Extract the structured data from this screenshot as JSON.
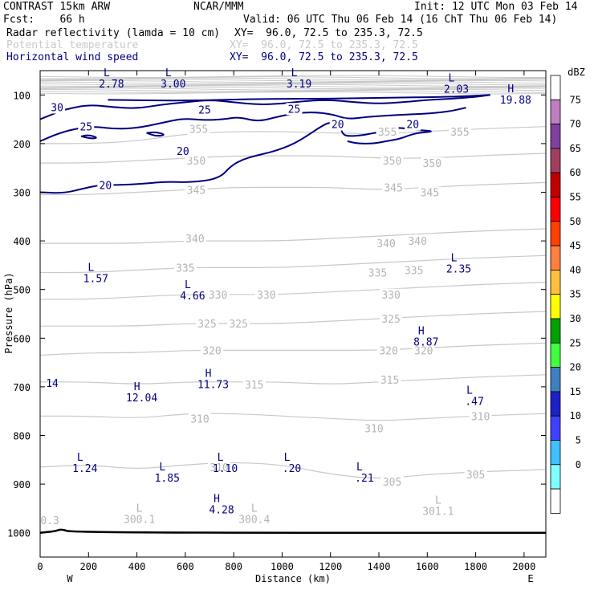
{
  "header": {
    "line1_left": "CONTRAST 15km ARW",
    "line1_mid": "NCAR/MMM",
    "line1_right": "Init: 12 UTC Mon 03 Feb 14",
    "line2_left": "Fcst:    66 h",
    "line2_right": "Valid: 06 UTC Thu 06 Feb 14 (16 ChT Thu 06 Feb 14)",
    "fields": [
      {
        "name": "Radar reflectivity (lamda = 10 cm)",
        "xy": "XY=  96.0, 72.5 to 235.3, 72.5",
        "color": "#000000"
      },
      {
        "name": "Potential temperature",
        "xy": "XY=  96.0, 72.5 to 235.3, 72.5",
        "color": "#c8c8c8"
      },
      {
        "name": "Horizontal wind speed",
        "xy": "XY=  96.0, 72.5 to 235.3, 72.5",
        "color": "#000080"
      }
    ]
  },
  "chart_data": {
    "type": "line",
    "title": "",
    "xlabel": "Distance (km)",
    "ylabel": "Pressure (hPa)",
    "xlim": [
      0,
      2090
    ],
    "ylim": [
      1050,
      50
    ],
    "x_ticks": [
      0,
      200,
      400,
      600,
      800,
      1000,
      1200,
      1400,
      1600,
      1800,
      2000
    ],
    "y_ticks": [
      100,
      200,
      300,
      400,
      500,
      600,
      700,
      800,
      900,
      1000
    ],
    "x_end_labels": {
      "left": "W",
      "right": "E"
    },
    "colorbar": {
      "unit": "dBZ",
      "levels": [
        0,
        5,
        10,
        15,
        20,
        25,
        30,
        35,
        40,
        45,
        50,
        55,
        60,
        65,
        70,
        75
      ],
      "colors": [
        "#ffffff",
        "#80ffff",
        "#40c0ff",
        "#4040ff",
        "#2020c8",
        "#4080c0",
        "#40ff40",
        "#00a000",
        "#ffff00",
        "#ffc040",
        "#ff8040",
        "#ff4000",
        "#ff0000",
        "#c00000",
        "#a04060",
        "#8040a0",
        "#c080c0",
        "#ffffff"
      ]
    },
    "theta_series": [
      {
        "label": "305",
        "values": [
          [
            0,
            865
          ],
          [
            200,
            860
          ],
          [
            400,
            870
          ],
          [
            600,
            860
          ],
          [
            800,
            855
          ],
          [
            1000,
            860
          ],
          [
            1200,
            880
          ],
          [
            1400,
            890
          ],
          [
            1600,
            880
          ],
          [
            1800,
            875
          ],
          [
            2090,
            870
          ]
        ]
      },
      {
        "label": "310",
        "values": [
          [
            0,
            760
          ],
          [
            200,
            760
          ],
          [
            400,
            765
          ],
          [
            600,
            755
          ],
          [
            800,
            755
          ],
          [
            1000,
            760
          ],
          [
            1200,
            765
          ],
          [
            1400,
            770
          ],
          [
            1600,
            765
          ],
          [
            1800,
            760
          ],
          [
            2090,
            755
          ]
        ]
      },
      {
        "label": "315",
        "values": [
          [
            0,
            690
          ],
          [
            200,
            690
          ],
          [
            400,
            695
          ],
          [
            600,
            690
          ],
          [
            800,
            690
          ],
          [
            1000,
            690
          ],
          [
            1200,
            695
          ],
          [
            1400,
            690
          ],
          [
            1600,
            685
          ],
          [
            1800,
            680
          ],
          [
            2090,
            675
          ]
        ]
      },
      {
        "label": "320",
        "values": [
          [
            0,
            635
          ],
          [
            200,
            630
          ],
          [
            400,
            630
          ],
          [
            600,
            625
          ],
          [
            800,
            625
          ],
          [
            1000,
            625
          ],
          [
            1200,
            625
          ],
          [
            1400,
            625
          ],
          [
            1600,
            620
          ],
          [
            1800,
            615
          ],
          [
            2090,
            610
          ]
        ]
      },
      {
        "label": "325",
        "values": [
          [
            0,
            575
          ],
          [
            200,
            575
          ],
          [
            400,
            575
          ],
          [
            600,
            570
          ],
          [
            800,
            570
          ],
          [
            1000,
            570
          ],
          [
            1200,
            565
          ],
          [
            1400,
            560
          ],
          [
            1600,
            555
          ],
          [
            1800,
            550
          ],
          [
            2090,
            545
          ]
        ]
      },
      {
        "label": "330",
        "values": [
          [
            0,
            520
          ],
          [
            200,
            520
          ],
          [
            400,
            515
          ],
          [
            600,
            510
          ],
          [
            800,
            510
          ],
          [
            1000,
            510
          ],
          [
            1200,
            505
          ],
          [
            1400,
            500
          ],
          [
            1600,
            495
          ],
          [
            1800,
            490
          ],
          [
            2090,
            485
          ]
        ]
      },
      {
        "label": "335",
        "values": [
          [
            0,
            465
          ],
          [
            200,
            465
          ],
          [
            400,
            460
          ],
          [
            600,
            455
          ],
          [
            800,
            455
          ],
          [
            1000,
            455
          ],
          [
            1200,
            450
          ],
          [
            1400,
            445
          ],
          [
            1600,
            440
          ],
          [
            1800,
            435
          ],
          [
            2090,
            430
          ]
        ]
      },
      {
        "label": "340",
        "values": [
          [
            0,
            405
          ],
          [
            200,
            405
          ],
          [
            400,
            405
          ],
          [
            600,
            400
          ],
          [
            800,
            400
          ],
          [
            1000,
            400
          ],
          [
            1200,
            395
          ],
          [
            1400,
            390
          ],
          [
            1600,
            385
          ],
          [
            1800,
            380
          ],
          [
            2090,
            375
          ]
        ]
      },
      {
        "label": "345",
        "values": [
          [
            0,
            305
          ],
          [
            200,
            305
          ],
          [
            400,
            300
          ],
          [
            600,
            295
          ],
          [
            800,
            290
          ],
          [
            1000,
            290
          ],
          [
            1200,
            290
          ],
          [
            1400,
            295
          ],
          [
            1600,
            290
          ],
          [
            1800,
            285
          ],
          [
            2090,
            280
          ]
        ]
      },
      {
        "label": "350",
        "values": [
          [
            0,
            240
          ],
          [
            200,
            240
          ],
          [
            400,
            235
          ],
          [
            600,
            230
          ],
          [
            800,
            225
          ],
          [
            1000,
            225
          ],
          [
            1200,
            225
          ],
          [
            1400,
            230
          ],
          [
            1600,
            230
          ],
          [
            1800,
            225
          ],
          [
            2090,
            220
          ]
        ]
      },
      {
        "label": "355",
        "values": [
          [
            0,
            200
          ],
          [
            200,
            200
          ],
          [
            400,
            195
          ],
          [
            600,
            180
          ],
          [
            800,
            175
          ],
          [
            1000,
            175
          ],
          [
            1200,
            178
          ],
          [
            1400,
            180
          ],
          [
            1600,
            175
          ],
          [
            1800,
            170
          ],
          [
            2090,
            165
          ]
        ]
      }
    ],
    "theta_labels": [
      {
        "text": "355",
        "x": 655,
        "p": 170
      },
      {
        "text": "355",
        "x": 1435,
        "p": 175
      },
      {
        "text": "355",
        "x": 1735,
        "p": 175
      },
      {
        "text": "350",
        "x": 645,
        "p": 235
      },
      {
        "text": "350",
        "x": 1455,
        "p": 235
      },
      {
        "text": "350",
        "x": 1620,
        "p": 240
      },
      {
        "text": "345",
        "x": 645,
        "p": 295
      },
      {
        "text": "345",
        "x": 1460,
        "p": 290
      },
      {
        "text": "345",
        "x": 1610,
        "p": 300
      },
      {
        "text": "340",
        "x": 640,
        "p": 395
      },
      {
        "text": "340",
        "x": 1430,
        "p": 405
      },
      {
        "text": "340",
        "x": 1560,
        "p": 400
      },
      {
        "text": "335",
        "x": 600,
        "p": 455
      },
      {
        "text": "335",
        "x": 1395,
        "p": 465
      },
      {
        "text": "335",
        "x": 1545,
        "p": 460
      },
      {
        "text": "330",
        "x": 735,
        "p": 510
      },
      {
        "text": "330",
        "x": 935,
        "p": 510
      },
      {
        "text": "330",
        "x": 1450,
        "p": 510
      },
      {
        "text": "325",
        "x": 690,
        "p": 570
      },
      {
        "text": "325",
        "x": 820,
        "p": 570
      },
      {
        "text": "325",
        "x": 1450,
        "p": 560
      },
      {
        "text": "320",
        "x": 710,
        "p": 625
      },
      {
        "text": "320",
        "x": 1440,
        "p": 625
      },
      {
        "text": "320",
        "x": 1585,
        "p": 625
      },
      {
        "text": "315",
        "x": 885,
        "p": 695
      },
      {
        "text": "315",
        "x": 1445,
        "p": 685
      },
      {
        "text": "310",
        "x": 660,
        "p": 765
      },
      {
        "text": "310",
        "x": 1380,
        "p": 785
      },
      {
        "text": "310",
        "x": 1820,
        "p": 760
      },
      {
        "text": "310",
        "x": 740,
        "p": 865
      },
      {
        "text": "305",
        "x": 1455,
        "p": 895
      },
      {
        "text": "305",
        "x": 1800,
        "p": 880
      }
    ],
    "theta_extrema": [
      {
        "mark": "L",
        "value": "300.1",
        "x": 410,
        "p": 980
      },
      {
        "mark": "L",
        "value": "300.4",
        "x": 885,
        "p": 980
      },
      {
        "mark": "L",
        "value": "301.1",
        "x": 1645,
        "p": 963
      },
      {
        "mark": "",
        "value": "0.3",
        "x": 40,
        "p": 982
      }
    ],
    "wind_contours": [
      {
        "label": "30",
        "values": [
          [
            0,
            150
          ],
          [
            50,
            140
          ],
          [
            100,
            130
          ],
          [
            200,
            120
          ],
          [
            300,
            125
          ],
          [
            400,
            128
          ],
          [
            500,
            120
          ],
          [
            600,
            115
          ],
          [
            700,
            110
          ],
          [
            800,
            115
          ],
          [
            900,
            120
          ],
          [
            1000,
            118
          ],
          [
            1100,
            112
          ],
          [
            1200,
            110
          ],
          [
            1300,
            115
          ],
          [
            1400,
            118
          ],
          [
            1500,
            115
          ],
          [
            1600,
            110
          ],
          [
            1700,
            108
          ],
          [
            1800,
            104
          ],
          [
            1860,
            100
          ]
        ]
      },
      {
        "label": "25",
        "values": [
          [
            0,
            195
          ],
          [
            80,
            178
          ],
          [
            160,
            168
          ],
          [
            230,
            165
          ],
          [
            310,
            170
          ],
          [
            400,
            168
          ],
          [
            500,
            158
          ],
          [
            590,
            148
          ],
          [
            680,
            152
          ],
          [
            760,
            150
          ],
          [
            820,
            145
          ],
          [
            900,
            155
          ],
          [
            980,
            145
          ],
          [
            1050,
            138
          ],
          [
            1130,
            135
          ],
          [
            1210,
            140
          ],
          [
            1270,
            150
          ],
          [
            1350,
            145
          ],
          [
            1440,
            142
          ],
          [
            1530,
            140
          ],
          [
            1620,
            138
          ],
          [
            1700,
            133
          ],
          [
            1760,
            126
          ]
        ]
      },
      {
        "label": "20",
        "values": [
          [
            0,
            300
          ],
          [
            100,
            302
          ],
          [
            180,
            292
          ],
          [
            250,
            285
          ],
          [
            340,
            285
          ],
          [
            440,
            282
          ],
          [
            520,
            278
          ],
          [
            620,
            280
          ],
          [
            740,
            272
          ],
          [
            790,
            245
          ],
          [
            840,
            232
          ],
          [
            890,
            225
          ],
          [
            950,
            218
          ],
          [
            1000,
            210
          ],
          [
            1050,
            200
          ],
          [
            1100,
            185
          ],
          [
            1160,
            165
          ],
          [
            1200,
            155
          ],
          [
            1240,
            165
          ],
          [
            1250,
            180
          ],
          [
            1270,
            185
          ],
          [
            1330,
            183
          ],
          [
            1380,
            178
          ],
          [
            1420,
            175
          ],
          [
            1450,
            167
          ],
          [
            1500,
            168
          ],
          [
            1560,
            172
          ],
          [
            1635,
            175
          ],
          [
            1550,
            178
          ],
          [
            1490,
            190
          ],
          [
            1430,
            195
          ],
          [
            1380,
            200
          ],
          [
            1310,
            200
          ],
          [
            1270,
            195
          ]
        ]
      }
    ],
    "wind_extrema": [
      {
        "mark": "L",
        "value": "2.78",
        "x": 295,
        "p": 85
      },
      {
        "mark": "L",
        "value": "3.00",
        "x": 550,
        "p": 85
      },
      {
        "mark": "L",
        "value": "3.19",
        "x": 1070,
        "p": 85
      },
      {
        "mark": "L",
        "value": "2.03",
        "x": 1720,
        "p": 95
      },
      {
        "mark": "H",
        "value": "19.88",
        "x": 1965,
        "p": 118
      },
      {
        "mark": "L",
        "value": "2.35",
        "x": 1730,
        "p": 465
      },
      {
        "mark": "L",
        "value": "1.57",
        "x": 230,
        "p": 485
      },
      {
        "mark": "L",
        "value": "4.66",
        "x": 630,
        "p": 520
      },
      {
        "mark": "H",
        "value": "8.87",
        "x": 1595,
        "p": 615
      },
      {
        "mark": "H",
        "value": "11.73",
        "x": 715,
        "p": 703
      },
      {
        "mark": "",
        "value": "14",
        "x": 50,
        "p": 700
      },
      {
        "mark": "H",
        "value": "12.04",
        "x": 420,
        "p": 730
      },
      {
        "mark": "L",
        "value": ".47",
        "x": 1795,
        "p": 737
      },
      {
        "mark": "L",
        "value": "1.24",
        "x": 185,
        "p": 875
      },
      {
        "mark": "L",
        "value": "1.10",
        "x": 765,
        "p": 875
      },
      {
        "mark": "L",
        "value": ".20",
        "x": 1040,
        "p": 875
      },
      {
        "mark": "L",
        "value": "1.85",
        "x": 525,
        "p": 895
      },
      {
        "mark": "L",
        "value": ".21",
        "x": 1340,
        "p": 895
      },
      {
        "mark": "H",
        "value": "4.28",
        "x": 750,
        "p": 960
      }
    ],
    "terrain": [
      [
        0,
        1000
      ],
      [
        60,
        997
      ],
      [
        90,
        992
      ],
      [
        130,
        1000
      ],
      [
        2090,
        1000
      ]
    ]
  }
}
